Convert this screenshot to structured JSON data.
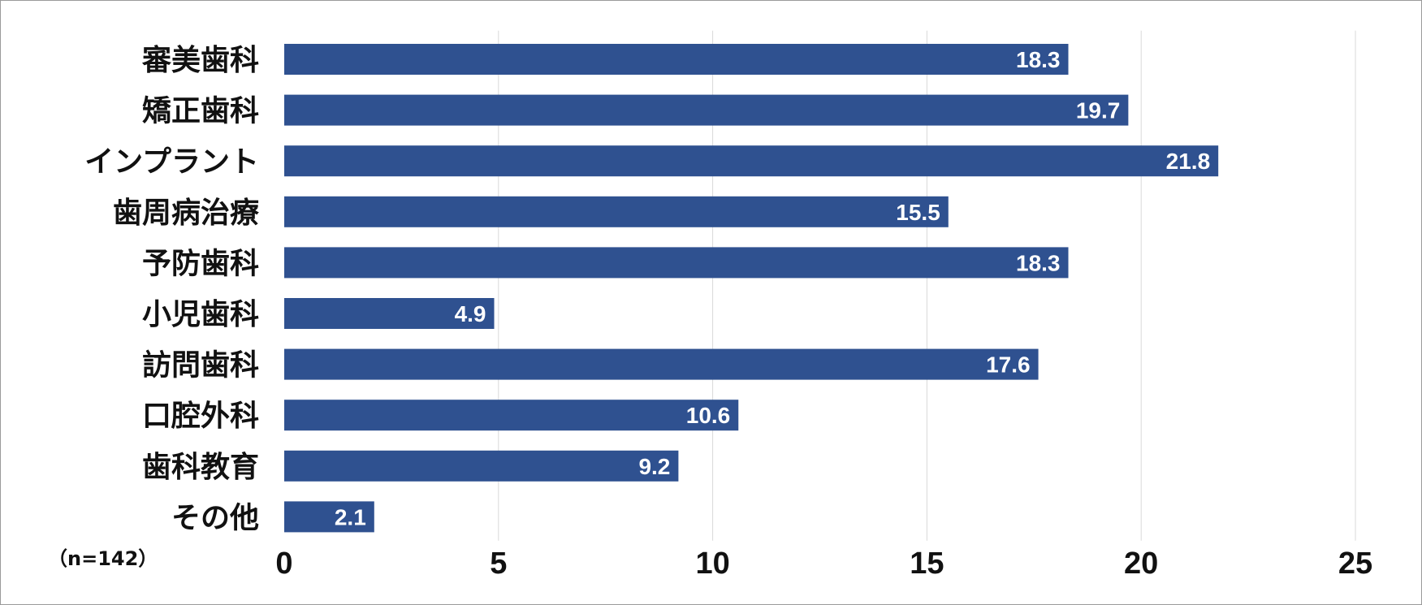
{
  "chart_data": {
    "type": "bar",
    "orientation": "horizontal",
    "categories": [
      "審美歯科",
      "矯正歯科",
      "インプラント",
      "歯周病治療",
      "予防歯科",
      "小児歯科",
      "訪問歯科",
      "口腔外科",
      "歯科教育",
      "その他"
    ],
    "values": [
      18.3,
      19.7,
      21.8,
      15.5,
      18.3,
      4.9,
      17.6,
      10.6,
      9.2,
      2.1
    ],
    "xlim": [
      0,
      25
    ],
    "xticks": [
      "0",
      "5",
      "10",
      "15",
      "20",
      "25"
    ],
    "grid": true,
    "title": "",
    "xlabel": "",
    "ylabel": "",
    "note": "（n=142）",
    "bar_color": "#2f5190",
    "value_label_color": "#ffffff"
  }
}
